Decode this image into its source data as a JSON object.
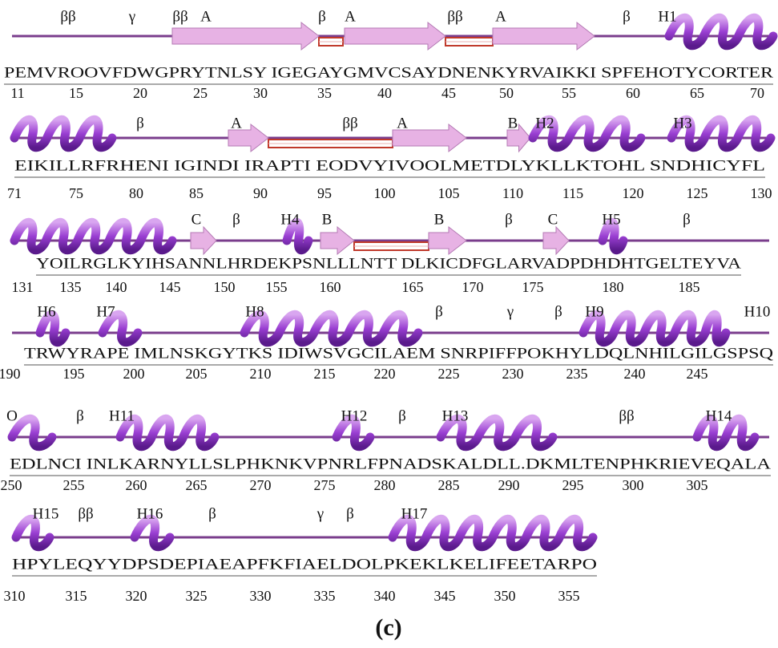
{
  "rows": [
    {
      "annotations": [
        "ββ",
        "γ",
        "ββ",
        "A",
        "β",
        "A",
        "ββ",
        "A",
        "β",
        "H1"
      ],
      "sequence": "PEMVROOVFDWGPRYTNLSY IGEGAYGMVCSAYDNENKYRVAIKKI SPFEHOTYCORTER",
      "numbers": [
        11,
        15,
        20,
        25,
        30,
        35,
        40,
        45,
        50,
        55,
        60,
        65,
        70
      ]
    },
    {
      "annotations": [
        "β",
        "A",
        "ββ",
        "A",
        "B",
        "H2",
        "H3"
      ],
      "sequence": "EIKILLRFRHENI IGINDI IRAPTI EODVYIVOOLMETDLYKLLKTOHL SNDHICYFL",
      "numbers": [
        71,
        75,
        80,
        85,
        90,
        95,
        100,
        105,
        110,
        115,
        120,
        125,
        130
      ]
    },
    {
      "annotations": [
        "C",
        "β",
        "H4",
        "B",
        "B",
        "β",
        "C",
        "H5",
        "β"
      ],
      "sequence": "YOILRGLKYIHSANNLHRDEKPSNLLLNTT DLKICDFGLARVADPDHDHTGELTEYVA",
      "numbers": [
        131,
        135,
        140,
        145,
        150,
        155,
        160,
        165,
        170,
        175,
        180,
        185
      ]
    },
    {
      "annotations": [
        "H6",
        "H7",
        "H8",
        "β",
        "γ",
        "β",
        "H9",
        "H10"
      ],
      "sequence": "TRWYRAPE IMLNSKGYTKS IDIWSVGCILAEM SNRPIFFPOKHYLDQLNHILGILGSPSQ",
      "numbers": [
        190,
        195,
        200,
        205,
        210,
        215,
        220,
        225,
        230,
        235,
        240,
        245
      ]
    },
    {
      "annotations": [
        "O",
        "β",
        "H11",
        "H12",
        "β",
        "H13",
        "ββ",
        "H14"
      ],
      "sequence": "EDLNCI INLKARNYLLSLPHKNKVPNRLFPNADSKALDLL.DKMLTENPHKRIEVEQALA",
      "numbers": [
        250,
        255,
        260,
        265,
        270,
        275,
        280,
        285,
        290,
        295,
        300,
        305
      ]
    },
    {
      "annotations": [
        "H15",
        "ββ",
        "H16",
        "β",
        "γ",
        "β",
        "H17"
      ],
      "sequence": "HPYLEQYYDPSDEPIAEAPFKFIAELDOLPKEKLKELIFEETARPO",
      "numbers": [
        310,
        315,
        320,
        325,
        330,
        335,
        340,
        345,
        350,
        355
      ]
    }
  ],
  "caption": "(c)"
}
